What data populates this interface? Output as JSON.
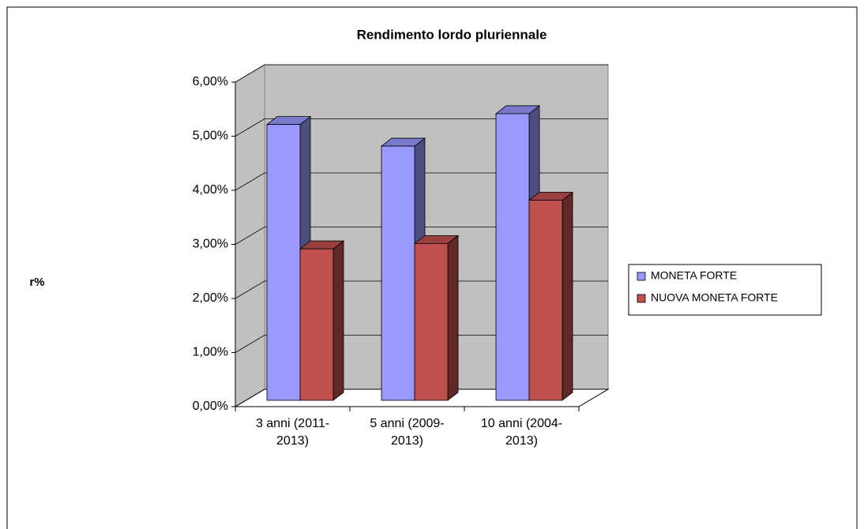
{
  "chart_data": {
    "type": "bar3d",
    "title": "Rendimento lordo pluriennale",
    "y_label": "r%",
    "categories": [
      "3 anni (2011-2013)",
      "5 anni (2009-2013)",
      "10 anni (2004-2013)"
    ],
    "series": [
      {
        "name": "MONETA FORTE",
        "color": "#9999ff",
        "values": [
          5.1,
          4.7,
          5.3
        ]
      },
      {
        "name": "NUOVA MONETA FORTE",
        "color": "#c0504d",
        "values": [
          2.8,
          2.9,
          3.7
        ]
      }
    ],
    "ylim": [
      0,
      6
    ],
    "yticks": [
      {
        "value": 0,
        "label": "0,00%"
      },
      {
        "value": 1,
        "label": "1,00%"
      },
      {
        "value": 2,
        "label": "2,00%"
      },
      {
        "value": 3,
        "label": "3,00%"
      },
      {
        "value": 4,
        "label": "4,00%"
      },
      {
        "value": 5,
        "label": "5,00%"
      },
      {
        "value": 6,
        "label": "6,00%"
      }
    ],
    "grid": true,
    "legend": "right"
  }
}
